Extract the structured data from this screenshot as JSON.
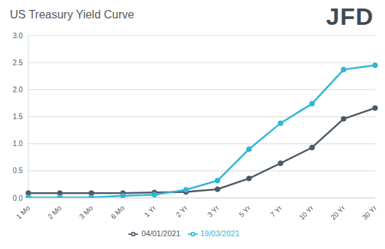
{
  "chart_data": {
    "type": "line",
    "title": "US Treasury Yield Curve",
    "logo": "JFD",
    "categories": [
      "1 Mo",
      "2 Mo",
      "3 Mo",
      "6 Mo",
      "1 Yr",
      "2 Yr",
      "3 Yr",
      "5 Yr",
      "7 Yr",
      "10 Yr",
      "20 Yr",
      "30 Yr"
    ],
    "series": [
      {
        "name": "04/01/2021",
        "color": "#4d5a66",
        "marker": "circle",
        "values": [
          0.09,
          0.09,
          0.09,
          0.09,
          0.1,
          0.11,
          0.16,
          0.36,
          0.64,
          0.93,
          1.46,
          1.66
        ]
      },
      {
        "name": "19/03/2021",
        "color": "#30b6d6",
        "marker": "circle",
        "values": [
          0.01,
          0.01,
          0.01,
          0.04,
          0.06,
          0.15,
          0.32,
          0.9,
          1.38,
          1.74,
          2.37,
          2.45
        ]
      }
    ],
    "ylim": [
      0,
      3
    ],
    "yticks": [
      {
        "value": 0,
        "label": "0.0"
      },
      {
        "value": 0.5,
        "label": "0.5"
      },
      {
        "value": 1,
        "label": "1.0"
      },
      {
        "value": 1.5,
        "label": "1.5"
      },
      {
        "value": 2,
        "label": "2.0"
      },
      {
        "value": 2.5,
        "label": "2.5"
      },
      {
        "value": 3,
        "label": "3.0"
      }
    ],
    "grid": true,
    "legend": "bottom"
  }
}
